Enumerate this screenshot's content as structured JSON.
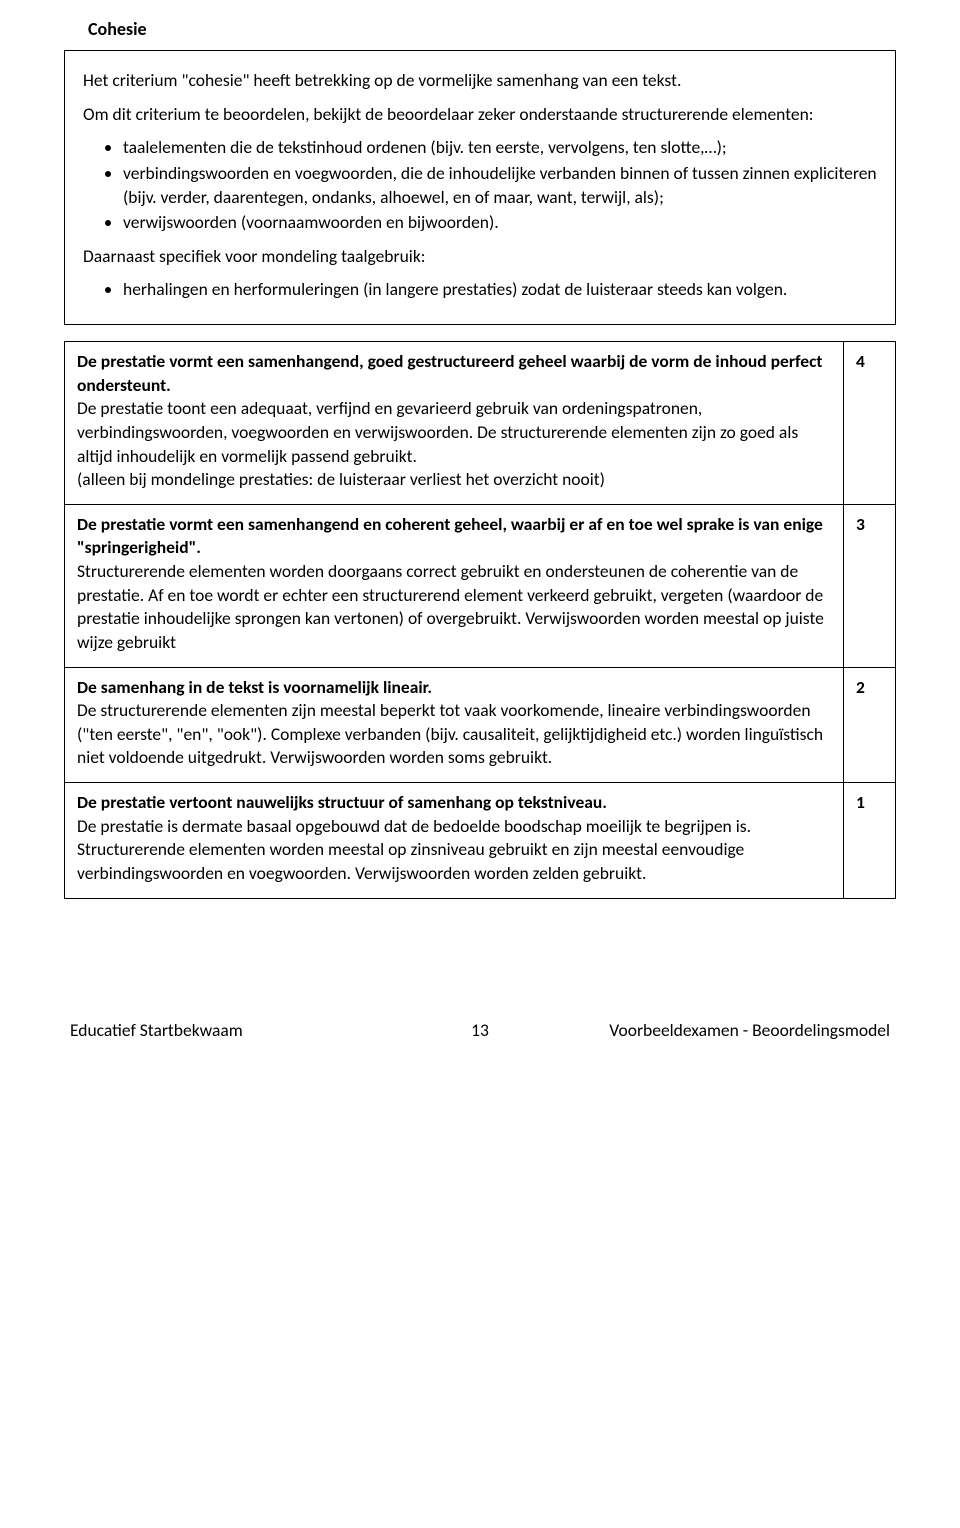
{
  "document": {
    "section_title": "Cohesie",
    "page_number": "13",
    "footer_left": "Educatief Startbekwaam",
    "footer_right": "Voorbeeldexamen - Beoordelingsmodel"
  },
  "intro": {
    "sentence1": "Het criterium \"cohesie\" heeft betrekking op de vormelijke samenhang van een tekst.",
    "sentence2": "Om dit criterium te beoordelen, bekijkt de beoordelaar zeker onderstaande structurerende elementen:",
    "bullets1": [
      "taalelementen die de tekstinhoud ordenen (bijv. ten eerste, vervolgens, ten slotte,…);",
      "verbindingswoorden en voegwoorden, die de inhoudelijke verbanden binnen of tussen zinnen expliciteren (bijv. verder, daarentegen, ondanks, alhoewel, en of maar, want, terwijl, als);",
      "verwijswoorden (voornaamwoorden en bijwoorden)."
    ],
    "sentence3": "Daarnaast specifiek voor mondeling taalgebruik:",
    "bullets2": [
      "herhalingen en herformuleringen (in langere prestaties) zodat de luisteraar steeds kan volgen."
    ]
  },
  "rubric": [
    {
      "title": "De prestatie vormt een samenhangend, goed gestructureerd geheel waarbij de vorm de inhoud perfect ondersteunt.",
      "body": "De prestatie toont een adequaat, verfijnd en gevarieerd gebruik van ordeningspatronen, verbindingswoorden, voegwoorden en verwijswoorden. De structurerende elementen zijn zo goed als altijd inhoudelijk en vormelijk passend gebruikt.\n(alleen bij mondelinge prestaties: de luisteraar verliest het overzicht nooit)",
      "score": "4"
    },
    {
      "title": "De prestatie vormt een samenhangend en coherent geheel, waarbij er af en toe wel sprake is van enige \"springerigheid\".",
      "body": "Structurerende elementen worden doorgaans correct gebruikt en ondersteunen de coherentie van de prestatie. Af en toe wordt er echter een structurerend element verkeerd gebruikt, vergeten (waardoor de prestatie inhoudelijke sprongen kan vertonen) of overgebruikt. Verwijswoorden worden meestal op juiste wijze gebruikt",
      "score": "3"
    },
    {
      "title": "De samenhang in de tekst is voornamelijk lineair.",
      "body": "De structurerende elementen zijn meestal beperkt tot vaak voorkomende, lineaire verbindingswoorden (\"ten eerste\", \"en\", \"ook\"). Complexe verbanden (bijv. causaliteit, gelijktijdigheid etc.) worden linguïstisch niet voldoende uitgedrukt. Verwijswoorden worden soms gebruikt.",
      "score": "2"
    },
    {
      "title": "De prestatie vertoont nauwelijks structuur of samenhang op tekstniveau.",
      "body": "De prestatie is dermate basaal opgebouwd dat de bedoelde boodschap moeilijk te begrijpen is. Structurerende elementen worden meestal op zinsniveau gebruikt en zijn meestal eenvoudige verbindingswoorden en voegwoorden. Verwijswoorden worden zelden gebruikt.",
      "score": "1"
    }
  ]
}
